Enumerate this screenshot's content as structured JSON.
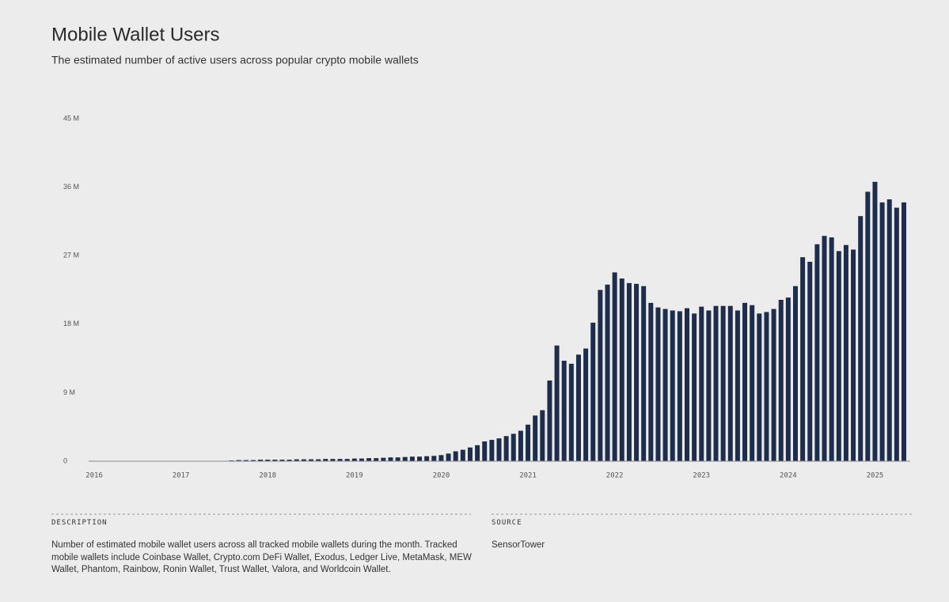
{
  "chart_data": {
    "type": "bar",
    "title": "Mobile Wallet Users",
    "subtitle": "The estimated number of active users across popular crypto mobile wallets",
    "categories": [
      "2016",
      null,
      null,
      null,
      null,
      null,
      null,
      null,
      null,
      null,
      null,
      null,
      "2017",
      null,
      null,
      null,
      null,
      null,
      null,
      null,
      null,
      null,
      null,
      null,
      "2018",
      null,
      null,
      null,
      null,
      null,
      null,
      null,
      null,
      null,
      null,
      null,
      "2019",
      null,
      null,
      null,
      null,
      null,
      null,
      null,
      null,
      null,
      null,
      null,
      "2020",
      null,
      null,
      null,
      null,
      null,
      null,
      null,
      null,
      null,
      null,
      null,
      "2021",
      null,
      null,
      null,
      null,
      null,
      null,
      null,
      null,
      null,
      null,
      null,
      "2022",
      null,
      null,
      null,
      null,
      null,
      null,
      null,
      null,
      null,
      null,
      null,
      "2023",
      null,
      null,
      null,
      null,
      null,
      null,
      null,
      null,
      null,
      null,
      null,
      "2024",
      null,
      null,
      null,
      null,
      null,
      null,
      null,
      null,
      null,
      null,
      null,
      "2025",
      null,
      null,
      null,
      null
    ],
    "values": [
      0,
      0,
      0,
      0,
      0,
      0,
      0,
      0,
      0,
      0,
      0,
      0,
      0,
      0,
      0,
      0,
      0,
      0,
      0,
      0.1,
      0.15,
      0.15,
      0.15,
      0.2,
      0.2,
      0.2,
      0.2,
      0.2,
      0.25,
      0.25,
      0.25,
      0.25,
      0.3,
      0.3,
      0.3,
      0.3,
      0.35,
      0.35,
      0.4,
      0.4,
      0.45,
      0.5,
      0.5,
      0.55,
      0.6,
      0.6,
      0.65,
      0.7,
      0.8,
      1.0,
      1.3,
      1.5,
      1.8,
      2.1,
      2.6,
      2.8,
      3.0,
      3.3,
      3.6,
      4.0,
      4.8,
      6.0,
      6.7,
      10.6,
      15.2,
      13.2,
      12.8,
      14.0,
      14.8,
      18.2,
      22.5,
      23.2,
      24.8,
      24.0,
      23.4,
      23.3,
      23.0,
      20.8,
      20.2,
      20.0,
      19.8,
      19.7,
      20.1,
      19.4,
      20.3,
      19.8,
      20.4,
      20.4,
      20.4,
      19.8,
      20.8,
      20.5,
      19.4,
      19.6,
      20.0,
      21.2,
      21.5,
      23.0,
      26.8,
      26.2,
      28.5,
      29.6,
      29.4,
      27.6,
      28.4,
      27.8,
      32.2,
      35.4,
      36.7,
      34.0,
      34.4,
      33.3,
      34.0
    ],
    "color": "#1f2d4d",
    "ylim": [
      0,
      45
    ],
    "yticks": [
      0,
      {
        "value": 9,
        "label": "9 M"
      },
      {
        "value": 18,
        "label": "18 M"
      },
      {
        "value": 27,
        "label": "27 M"
      },
      {
        "value": 36,
        "label": "36 M"
      },
      {
        "value": 45,
        "label": "45 M"
      }
    ]
  },
  "description": {
    "heading": "DESCRIPTION",
    "text": "Number of estimated mobile wallet users across all tracked mobile wallets during the month. Tracked mobile wallets include Coinbase Wallet, Crypto.com DeFi Wallet, Exodus, Ledger Live, MetaMask, MEW Wallet, Phantom, Rainbow, Ronin Wallet, Trust Wallet, Valora, and Worldcoin Wallet."
  },
  "source": {
    "heading": "SOURCE",
    "text": "SensorTower"
  }
}
